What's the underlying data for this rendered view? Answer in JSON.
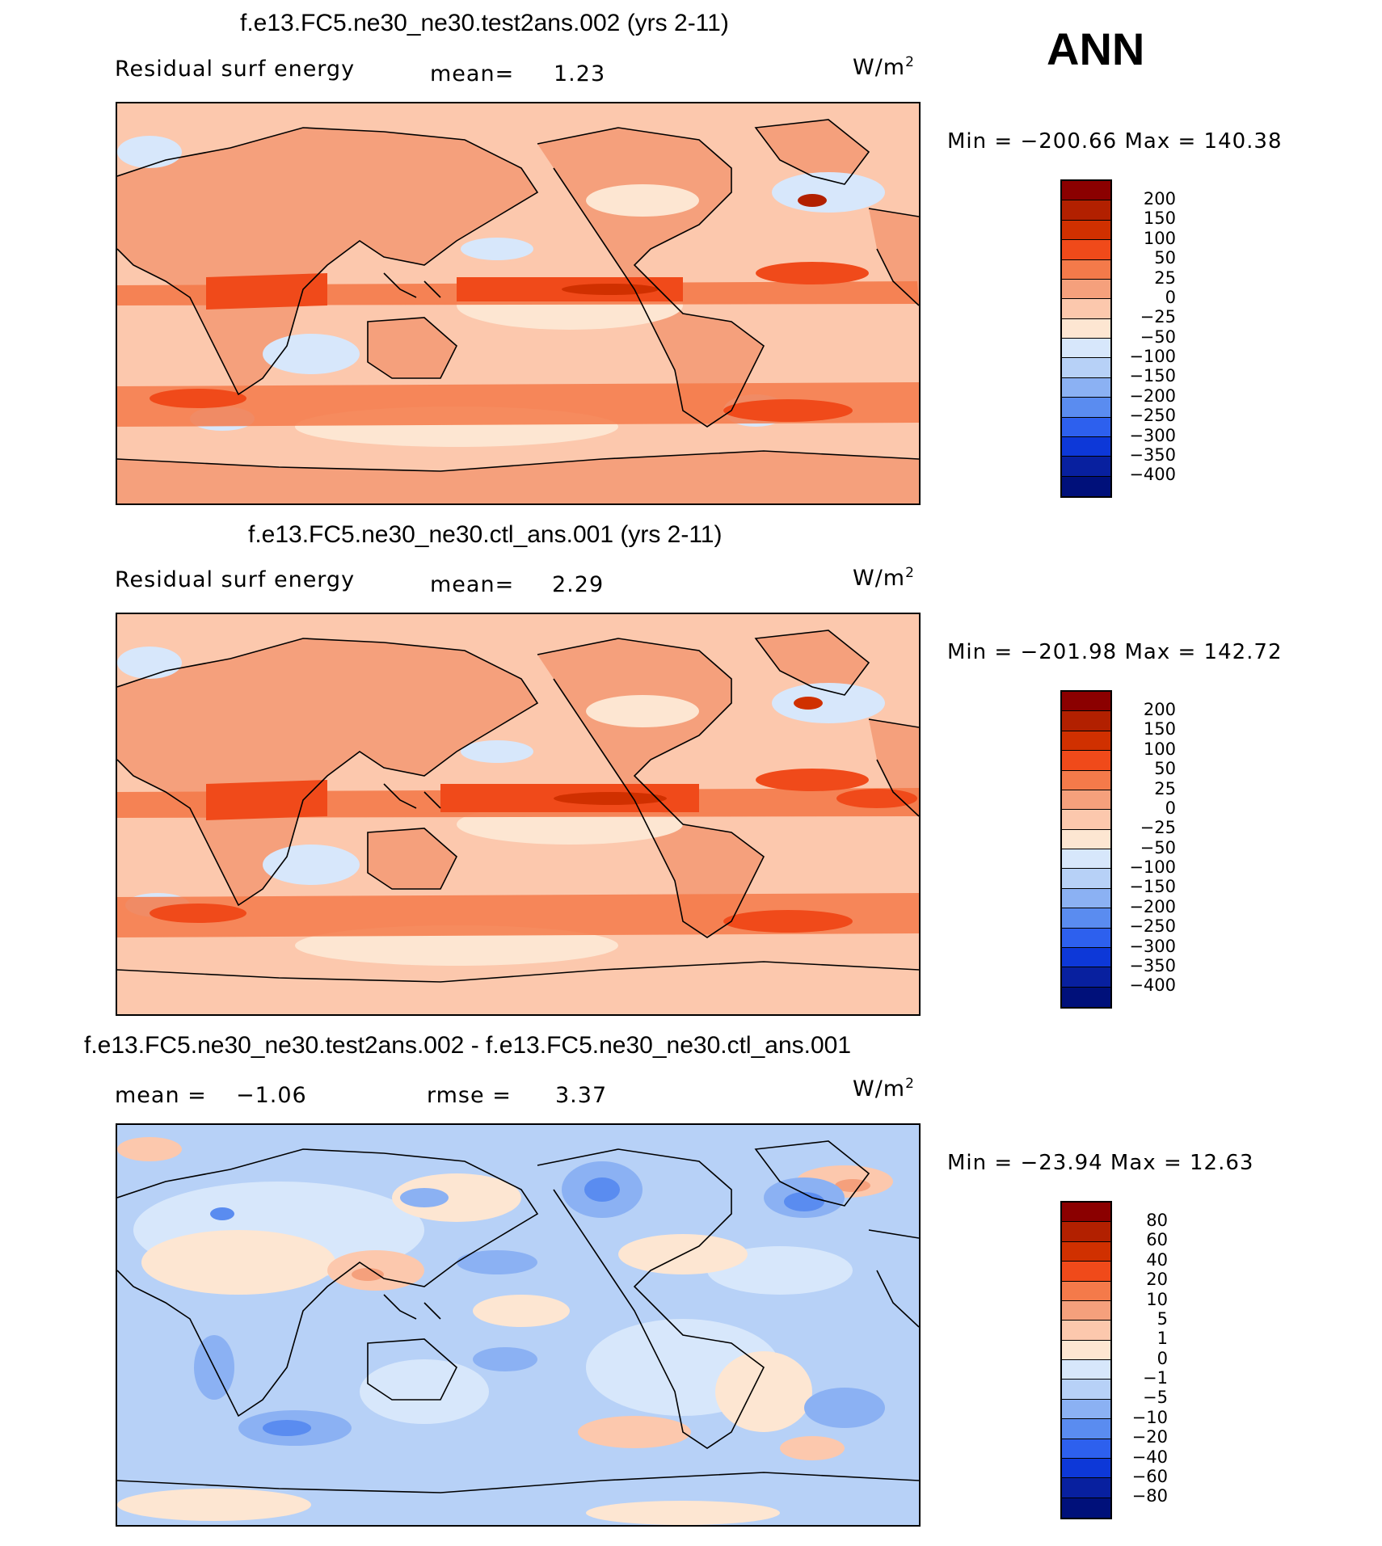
{
  "season": "ANN",
  "units_label": "W/m",
  "units_exp": "2",
  "panels": [
    {
      "title": "f.e13.FC5.ne30_ne30.test2ans.002 (yrs 2-11)",
      "subtitle_left": "Residual surf energy",
      "mean_label": "mean=",
      "mean_value": "1.23",
      "minmax": "Min = −200.66 Max = 140.38",
      "colorbar_labels": [
        "200",
        "150",
        "100",
        "50",
        "25",
        "0",
        "−25",
        "−50",
        "−100",
        "−150",
        "−200",
        "−250",
        "−300",
        "−350",
        "−400"
      ]
    },
    {
      "title": "f.e13.FC5.ne30_ne30.ctl_ans.001 (yrs 2-11)",
      "subtitle_left": "Residual surf energy",
      "mean_label": "mean=",
      "mean_value": "2.29",
      "minmax": "Min = −201.98 Max = 142.72",
      "colorbar_labels": [
        "200",
        "150",
        "100",
        "50",
        "25",
        "0",
        "−25",
        "−50",
        "−100",
        "−150",
        "−200",
        "−250",
        "−300",
        "−350",
        "−400"
      ]
    },
    {
      "title": "f.e13.FC5.ne30_ne30.test2ans.002 - f.e13.FC5.ne30_ne30.ctl_ans.001",
      "mean_label": "mean =",
      "mean_value": "−1.06",
      "rmse_label": "rmse =",
      "rmse_value": "3.37",
      "minmax": "Min = −23.94 Max =   12.63",
      "colorbar_labels": [
        "80",
        "60",
        "40",
        "20",
        "10",
        "5",
        "1",
        "0",
        "−1",
        "−5",
        "−10",
        "−20",
        "−40",
        "−60",
        "−80"
      ]
    }
  ],
  "colors": {
    "scale": [
      "#8b0000",
      "#b22000",
      "#d03000",
      "#f04a1a",
      "#f47a4a",
      "#f5a07c",
      "#fcc8ad",
      "#fde6d2",
      "#d7e7fb",
      "#b7d1f7",
      "#8bb1f3",
      "#5a8cf0",
      "#2d60ee",
      "#0d38d8",
      "#08209f",
      "#00107a"
    ],
    "ocean_base": "#fcc8ad",
    "land": "#f5a07c",
    "diff_base": "#b7d1f7"
  }
}
